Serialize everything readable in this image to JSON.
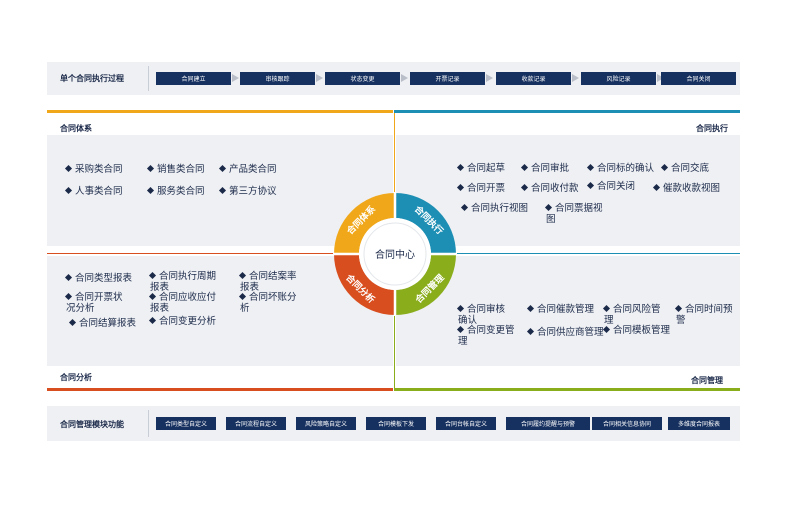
{
  "process": {
    "title": "单个合同执行过程",
    "steps": [
      "合同建立",
      "审核跟踪",
      "状态变更",
      "开票记录",
      "收款记录",
      "风险记录",
      "合同关闭"
    ]
  },
  "center": {
    "label": "合同中心",
    "segments": [
      "合同体系",
      "合同执行",
      "合同管理",
      "合同分析"
    ]
  },
  "quadrants": {
    "tl": {
      "label": "合同体系",
      "items": [
        "采购类合同",
        "销售类合同",
        "产品类合同",
        "人事类合同",
        "服务类合同",
        "第三方协议"
      ]
    },
    "tr": {
      "label": "合同执行",
      "items": [
        "合同起草",
        "合同审批",
        "合同标的确认",
        "合同交底",
        "合同开票",
        "合同收付款",
        "合同关闭",
        "催款收款视图",
        "合同执行视图",
        "合同票据视\n图"
      ]
    },
    "bl": {
      "label": "合同分析",
      "items": [
        "合同类型报表",
        "合同执行周期\n报表",
        "合同结案率\n报表",
        "合同开票状\n况分析",
        "合同应收应付\n报表",
        "合同坏账分\n析",
        "合同结算报表",
        "合同变更分析"
      ]
    },
    "br": {
      "label": "合同管理",
      "items": [
        "合同审核\n确认",
        "合同催款管理",
        "合同风险管\n理",
        "合同时间预\n警",
        "合同变更管\n理",
        "合同供应商管理",
        "合同模板管理"
      ]
    }
  },
  "functions": {
    "title": "合同管理模块功能",
    "items": [
      "合同类型自定义",
      "合同流程自定义",
      "风险策略自定义",
      "合同模板下发",
      "合同台帐自定义",
      "合同履约提醒与预警",
      "合同相关信息协同",
      "多维度合同报表"
    ]
  },
  "colors": {
    "navy": "#16305f",
    "orange": "#f0a81a",
    "blue": "#1d8fb4",
    "green": "#8aad1c",
    "red": "#d94e1e"
  }
}
